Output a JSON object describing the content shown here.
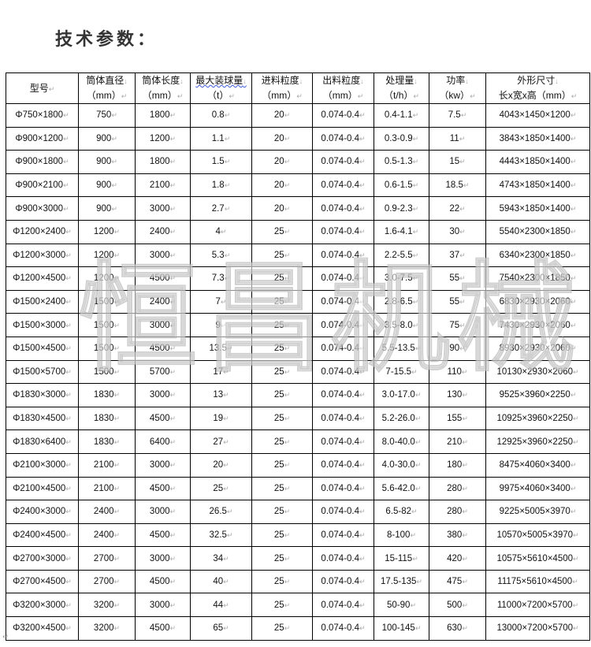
{
  "title": "技术参数：",
  "watermark": "恒昌机械",
  "columns": [
    {
      "line1": "型号",
      "line2": ""
    },
    {
      "line1": "筒体直径",
      "line2": "（mm）"
    },
    {
      "line1": "筒体长度",
      "line2": "（mm）"
    },
    {
      "line1": "最大装球量",
      "line2": "（t）"
    },
    {
      "line1": "进料粒度",
      "line2": "（mm）"
    },
    {
      "line1": "出料粒度",
      "line2": "（mm）"
    },
    {
      "line1": "处理量",
      "line2": "（t/h）"
    },
    {
      "line1": "功率",
      "line2": "（kw）"
    },
    {
      "line1": "外形尺寸",
      "line2": "长x宽x高（mm）"
    }
  ],
  "rows": [
    [
      "Φ750×1800",
      "750",
      "1800",
      "0.8",
      "20",
      "0.074-0.4",
      "0.4-1.1",
      "7.5",
      "4043×1450×1200"
    ],
    [
      "Φ900×1200",
      "900",
      "1200",
      "1.1",
      "20",
      "0.074-0.4",
      "0.3-0.9",
      "11",
      "3843×1850×1400"
    ],
    [
      "Φ900×1800",
      "900",
      "1800",
      "1.5",
      "20",
      "0.074-0.4",
      "0.5-1.3",
      "15",
      "4443×1850×1400"
    ],
    [
      "Φ900×2100",
      "900",
      "2100",
      "1.8",
      "20",
      "0.074-0.4",
      "0.6-1.5",
      "18.5",
      "4743×1850×1400"
    ],
    [
      "Φ900×3000",
      "900",
      "3000",
      "2.7",
      "20",
      "0.074-0.4",
      "0.9-2.3",
      "22",
      "5943×1850×1400"
    ],
    [
      "Φ1200×2400",
      "1200",
      "2400",
      "4",
      "25",
      "0.074-0.4",
      "1.6-4.1",
      "30",
      "5540×2300×1850"
    ],
    [
      "Φ1200×3000",
      "1200",
      "3000",
      "5.3",
      "25",
      "0.074-0.4",
      "2.2-5.5",
      "37",
      "6340×2300×1850"
    ],
    [
      "Φ1200×4500",
      "1200",
      "4500",
      "7.3",
      "25",
      "0.074-0.4",
      "3.0-7.5",
      "55",
      "7540×2300×1850"
    ],
    [
      "Φ1500×2400",
      "1500",
      "2400",
      "7",
      "25",
      "0.074-0.4",
      "2.8-6.5",
      "55",
      "6830×2930×2060"
    ],
    [
      "Φ1500×3000",
      "1500",
      "3000",
      "9",
      "25",
      "0.074-0.4",
      "3.5-8.0",
      "75",
      "7430×2930×2060"
    ],
    [
      "Φ1500×4500",
      "1500",
      "4500",
      "13.5",
      "25",
      "0.074-0.4",
      "5.5-13.5",
      "90",
      "8930×2930×2060"
    ],
    [
      "Φ1500×5700",
      "1500",
      "5700",
      "17",
      "25",
      "0.074-0.4",
      "7-15.5",
      "110",
      "10130×2930×2060"
    ],
    [
      "Φ1830×3000",
      "1830",
      "3000",
      "13",
      "25",
      "0.074-0.4",
      "3.0-17.0",
      "130",
      "9525×3960×2250"
    ],
    [
      "Φ1830×4500",
      "1830",
      "4500",
      "19",
      "25",
      "0.074-0.4",
      "5.2-26.0",
      "155",
      "10925×3960×2250"
    ],
    [
      "Φ1830×6400",
      "1830",
      "6400",
      "27",
      "25",
      "0.074-0.4",
      "8.0-40.0",
      "210",
      "12925×3960×2250"
    ],
    [
      "Φ2100×3000",
      "2100",
      "3000",
      "20",
      "25",
      "0.074-0.4",
      "4.0-30.0",
      "180",
      "8475×4060×3400"
    ],
    [
      "Φ2100×4500",
      "2100",
      "4500",
      "25",
      "25",
      "0.074-0.4",
      "5.6-42.0",
      "280",
      "9975×4060×3400"
    ],
    [
      "Φ2400×3000",
      "2400",
      "3000",
      "26.5",
      "25",
      "0.074-0.4",
      "6.5-82",
      "280",
      "9225×5005×3970"
    ],
    [
      "Φ2400×4500",
      "2400",
      "4500",
      "32.5",
      "25",
      "0.074-0.4",
      "8-100",
      "380",
      "10570×5005×3970"
    ],
    [
      "Φ2700×3000",
      "2700",
      "3000",
      "34",
      "25",
      "0.074-0.4",
      "15-115",
      "420",
      "10575×5610×4500"
    ],
    [
      "Φ2700×4500",
      "2700",
      "4500",
      "40",
      "25",
      "0.074-0.4",
      "17.5-135",
      "475",
      "11175×5610×4500"
    ],
    [
      "Φ3200×3000",
      "3200",
      "3000",
      "44",
      "25",
      "0.074-0.4",
      "50-90",
      "500",
      "11000×7200×5700"
    ],
    [
      "Φ3200×4500",
      "3200",
      "4500",
      "65",
      "25",
      "0.074-0.4",
      "100-145",
      "630",
      "13000×7200×5700"
    ]
  ]
}
